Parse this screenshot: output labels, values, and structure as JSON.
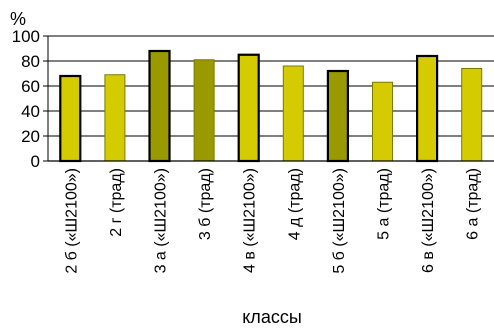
{
  "chart_data": {
    "type": "bar",
    "title": "",
    "xlabel": "классы",
    "ylabel": "%",
    "ylim": [
      0,
      100
    ],
    "yticks": [
      0,
      20,
      40,
      60,
      80,
      100
    ],
    "grid": true,
    "legend": "none",
    "categories": [
      "2 б («Ш2100»)",
      "2 г (трад)",
      "3 а («Ш2100»)",
      "3 б (трад)",
      "4 в («Ш2100»)",
      "4 д (трад)",
      "5 б («Ш2100»)",
      "5 а (трад)",
      "6 в («Ш2100»)",
      "6 а (трад)"
    ],
    "values": [
      68,
      69,
      88,
      81,
      85,
      76,
      72,
      63,
      84,
      74
    ],
    "colors": {
      "dark_fill": "#999900",
      "light_fill": "#d4cc00",
      "ш2100_border": "#000000",
      "trad_border": "#7a7a00",
      "grid": "#000000"
    },
    "bar_styles": [
      "light-bold",
      "light",
      "dark-bold",
      "dark",
      "light-bold",
      "light",
      "dark-bold",
      "light",
      "light-bold",
      "light"
    ]
  }
}
